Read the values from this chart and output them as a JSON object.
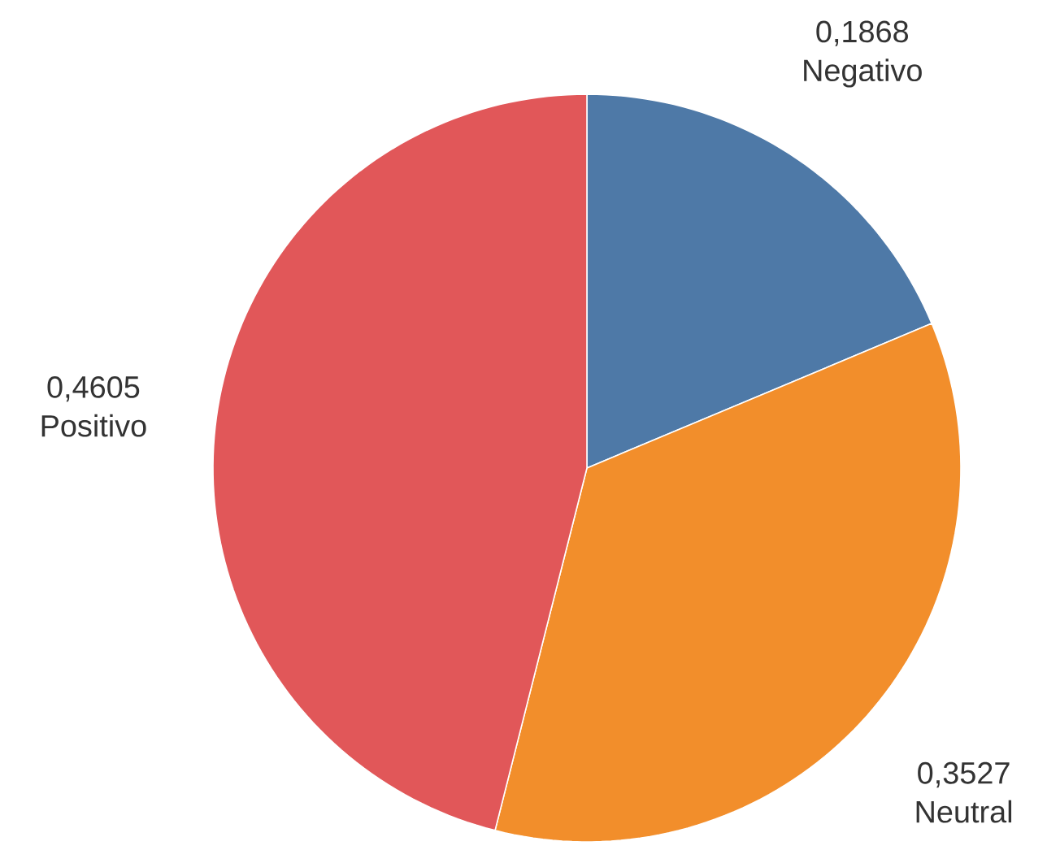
{
  "chart_data": {
    "type": "pie",
    "categories": [
      "Negativo",
      "Neutral",
      "Positivo"
    ],
    "values": [
      0.1868,
      0.3527,
      0.4605
    ],
    "colors": [
      "#4e79a7",
      "#f28e2b",
      "#e15759"
    ],
    "value_labels": [
      "0,1868",
      "0,3527",
      "0,4605"
    ]
  }
}
